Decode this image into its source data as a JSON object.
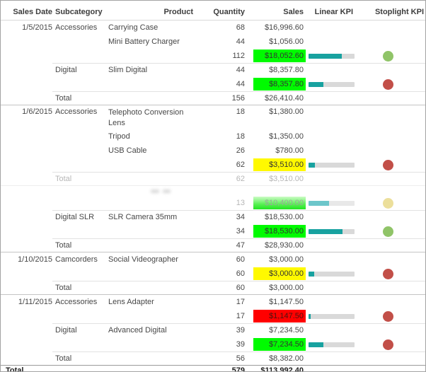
{
  "header": {
    "columns": [
      "Sales Date",
      "Subcategory",
      "Product",
      "Quantity",
      "Sales",
      "Linear KPI",
      "Stoplight KPI"
    ]
  },
  "colors": {
    "highlight": {
      "green": "#00fb00",
      "yellow": "#fff900",
      "red": "#ff0000"
    },
    "stoplight": {
      "green": "#90c468",
      "red": "#c24f48",
      "yellow": "#ecdf9b"
    },
    "kpi_fill": "#18a2a0",
    "kpi_fill_faded": "#6cc6ca",
    "kpi_track": "#d9d9d9"
  },
  "rows": [
    {
      "t": "item",
      "date": "1/5/2015",
      "sub": "Accessories",
      "prod": "Carrying Case",
      "qty": "68",
      "sales": "$16,996.60"
    },
    {
      "t": "item",
      "prod": "Mini Battery Charger",
      "qty": "44",
      "sales": "$1,056.00"
    },
    {
      "t": "sub",
      "qty": "112",
      "sales": "$18,052.60",
      "hl": "green",
      "kpi": 72,
      "light": "green"
    },
    {
      "t": "item",
      "sub": "Digital",
      "prod": "Slim Digital",
      "qty": "44",
      "sales": "$8,357.80",
      "sep": "partial"
    },
    {
      "t": "sub",
      "qty": "44",
      "sales": "$8,357.80",
      "hl": "green",
      "kpi": 33,
      "light": "red"
    },
    {
      "t": "total",
      "label": "Total",
      "qty": "156",
      "sales": "$26,410.40",
      "sep": "partial"
    },
    {
      "t": "item",
      "date": "1/6/2015",
      "sub": "Accessories",
      "prod": "Telephoto Conversion Lens",
      "qty": "18",
      "sales": "$1,380.00",
      "sep": "full",
      "twoline": true
    },
    {
      "t": "item",
      "prod": "Tripod",
      "qty": "18",
      "sales": "$1,350.00"
    },
    {
      "t": "item",
      "prod": "USB Cable",
      "qty": "26",
      "sales": "$780.00"
    },
    {
      "t": "sub",
      "qty": "62",
      "sales": "$3,510.00",
      "hl": "yellow",
      "kpi": 14,
      "light": "red"
    },
    {
      "t": "total",
      "label": "Total",
      "qty": "62",
      "sales": "$3,510.00",
      "sep": "partial",
      "faded": true
    },
    {
      "t": "blur",
      "sep": "full-faint"
    },
    {
      "t": "sub",
      "qty": "13",
      "sales": "$10,400.00",
      "hl": "green-grad",
      "kpi": 44,
      "light": "yellow",
      "faded": true
    },
    {
      "t": "item",
      "sub": "Digital SLR",
      "prod": "SLR Camera 35mm",
      "qty": "34",
      "sales": "$18,530.00",
      "sep": "partial"
    },
    {
      "t": "sub",
      "qty": "34",
      "sales": "$18,530.00",
      "hl": "green",
      "kpi": 74,
      "light": "green"
    },
    {
      "t": "total",
      "label": "Total",
      "qty": "47",
      "sales": "$28,930.00",
      "sep": "partial"
    },
    {
      "t": "item",
      "date": "1/10/2015",
      "sub": "Camcorders",
      "prod": "Social Videographer",
      "qty": "60",
      "sales": "$3,000.00",
      "sep": "full"
    },
    {
      "t": "sub",
      "qty": "60",
      "sales": "$3,000.00",
      "hl": "yellow",
      "kpi": 12,
      "light": "red"
    },
    {
      "t": "total",
      "label": "Total",
      "qty": "60",
      "sales": "$3,000.00",
      "sep": "partial"
    },
    {
      "t": "item",
      "date": "1/11/2015",
      "sub": "Accessories",
      "prod": "Lens Adapter",
      "qty": "17",
      "sales": "$1,147.50",
      "sep": "full"
    },
    {
      "t": "sub",
      "qty": "17",
      "sales": "$1,147.50",
      "hl": "red",
      "kpi": 5,
      "light": "red"
    },
    {
      "t": "item",
      "sub": "Digital",
      "prod": "Advanced Digital",
      "qty": "39",
      "sales": "$7,234.50",
      "sep": "partial"
    },
    {
      "t": "sub",
      "qty": "39",
      "sales": "$7,234.50",
      "hl": "green",
      "kpi": 32,
      "light": "red"
    },
    {
      "t": "total",
      "label": "Total",
      "qty": "56",
      "sales": "$8,382.00",
      "sep": "partial"
    },
    {
      "t": "grand",
      "label": "Total",
      "qty": "579",
      "sales": "$113,992.40",
      "sep": "full-dark"
    }
  ]
}
